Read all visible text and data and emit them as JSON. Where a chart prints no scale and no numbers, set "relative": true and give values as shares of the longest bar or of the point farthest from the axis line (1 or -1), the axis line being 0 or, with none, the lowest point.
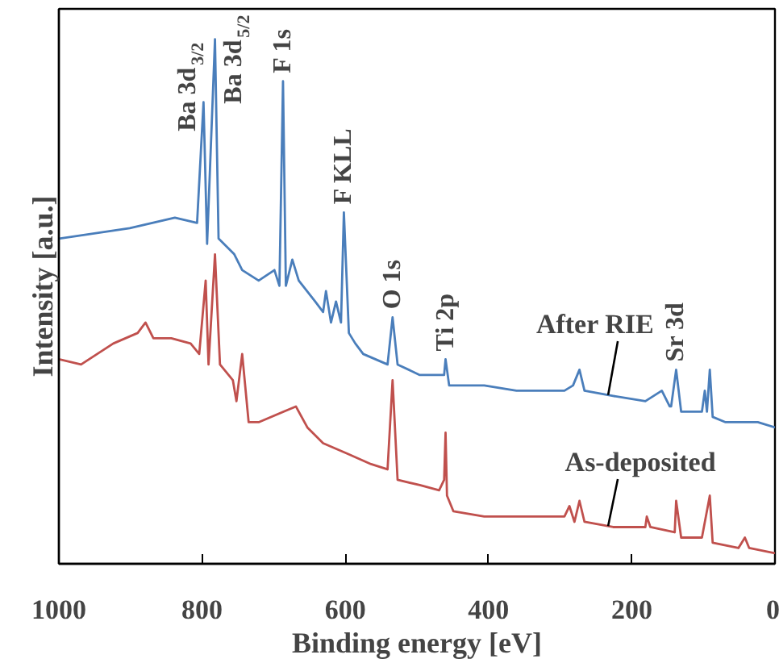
{
  "chart_data": {
    "type": "line",
    "xlabel": "Binding energy [eV]",
    "ylabel": "Intensity [a.u.]",
    "xlim": [
      1000,
      0
    ],
    "xticks": [
      1000,
      800,
      600,
      400,
      200,
      0
    ],
    "relative": true,
    "line_style": "solid",
    "series": [
      {
        "name": "After RIE",
        "color": "#4a7ebb",
        "x": [
          1000,
          901,
          838,
          807,
          798,
          793,
          782,
          777,
          755,
          744,
          721,
          699,
          692,
          687,
          683,
          674,
          665,
          642,
          631,
          627,
          620,
          613,
          606,
          602,
          595,
          586,
          575,
          541,
          534,
          527,
          496,
          462,
          460,
          455,
          406,
          361,
          294,
          282,
          273,
          266,
          226,
          181,
          158,
          147,
          145,
          138,
          131,
          114,
          102,
          98,
          95,
          91,
          87,
          69,
          24,
          0
        ],
        "values": [
          0.62,
          0.64,
          0.66,
          0.65,
          0.88,
          0.61,
          1.0,
          0.62,
          0.59,
          0.56,
          0.54,
          0.56,
          0.53,
          0.92,
          0.53,
          0.58,
          0.54,
          0.5,
          0.48,
          0.52,
          0.46,
          0.5,
          0.46,
          0.67,
          0.44,
          0.42,
          0.4,
          0.38,
          0.47,
          0.38,
          0.36,
          0.36,
          0.39,
          0.34,
          0.34,
          0.33,
          0.33,
          0.34,
          0.37,
          0.33,
          0.32,
          0.31,
          0.33,
          0.3,
          0.3,
          0.37,
          0.29,
          0.29,
          0.29,
          0.33,
          0.29,
          0.37,
          0.28,
          0.27,
          0.27,
          0.26
        ]
      },
      {
        "name": "As-deposited",
        "color": "#c0504d",
        "x": [
          1000,
          969,
          924,
          890,
          879,
          868,
          843,
          816,
          804,
          795,
          791,
          782,
          775,
          757,
          752,
          744,
          735,
          721,
          669,
          653,
          631,
          597,
          564,
          541,
          534,
          527,
          496,
          469,
          462,
          460,
          458,
          449,
          406,
          361,
          294,
          287,
          280,
          273,
          266,
          226,
          181,
          179,
          174,
          140,
          138,
          131,
          102,
          91,
          87,
          51,
          42,
          36,
          0
        ],
        "values": [
          0.39,
          0.38,
          0.42,
          0.44,
          0.46,
          0.43,
          0.43,
          0.42,
          0.4,
          0.54,
          0.38,
          0.59,
          0.38,
          0.35,
          0.31,
          0.4,
          0.27,
          0.27,
          0.3,
          0.26,
          0.23,
          0.21,
          0.19,
          0.18,
          0.35,
          0.16,
          0.15,
          0.14,
          0.16,
          0.25,
          0.13,
          0.1,
          0.09,
          0.09,
          0.09,
          0.11,
          0.08,
          0.12,
          0.08,
          0.07,
          0.07,
          0.09,
          0.07,
          0.06,
          0.12,
          0.05,
          0.05,
          0.13,
          0.04,
          0.03,
          0.05,
          0.03,
          0.02
        ]
      }
    ],
    "annotations": [
      {
        "text": "Ba 3d$_{3/2}$",
        "x": 798,
        "y": 0.88
      },
      {
        "text": "Ba 3d$_{5/2}$",
        "x": 782,
        "y": 1.0
      },
      {
        "text": "F 1s",
        "x": 687,
        "y": 0.92
      },
      {
        "text": "F KLL",
        "x": 602,
        "y": 0.67
      },
      {
        "text": "O 1s",
        "x": 534,
        "y": 0.47
      },
      {
        "text": "Ti 2p",
        "x": 460,
        "y": 0.39
      },
      {
        "text": "Sr 3d",
        "x": 138,
        "y": 0.37
      }
    ]
  }
}
